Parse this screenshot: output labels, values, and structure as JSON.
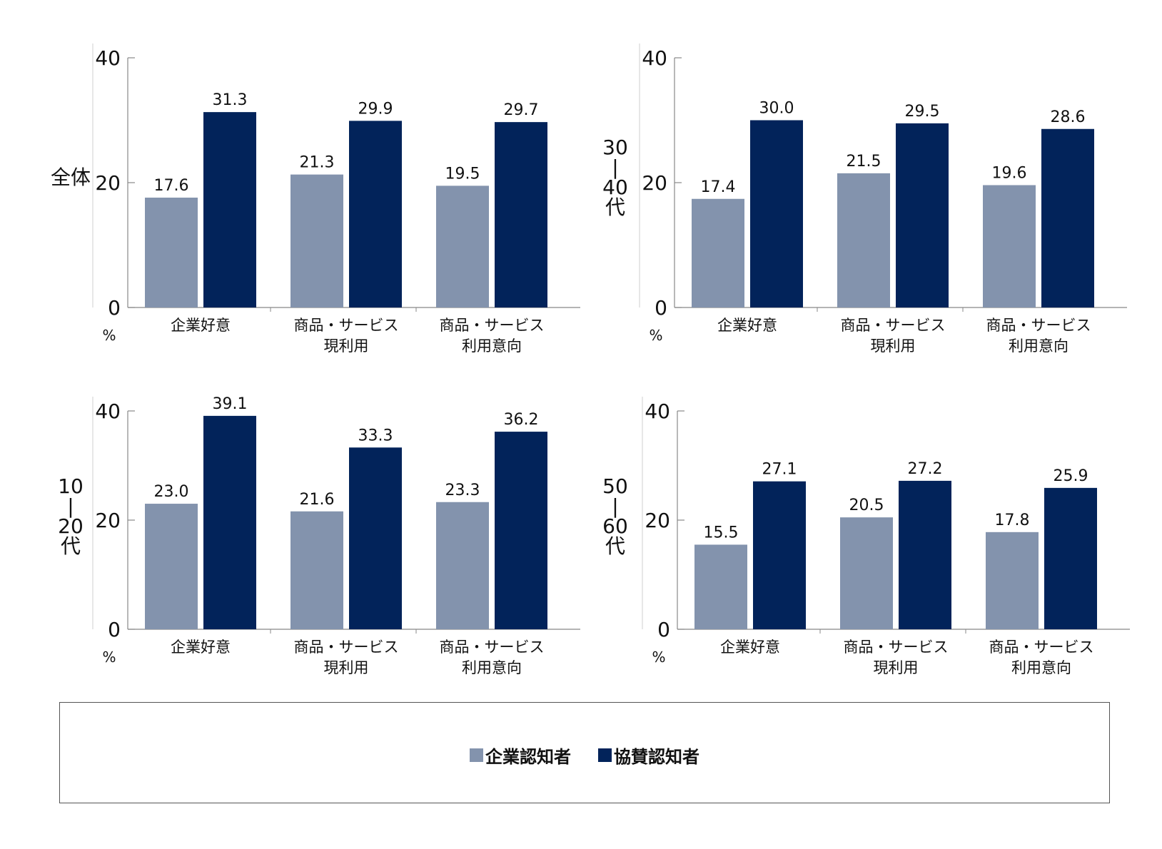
{
  "colors": {
    "series1": "#8393ad",
    "series2": "#02235a",
    "axis": "#888888"
  },
  "chart_data": [
    {
      "type": "bar",
      "panel_label": "全体",
      "unit": "%",
      "ylim": [
        0,
        40
      ],
      "yticks": [
        0,
        20,
        40
      ],
      "categories": [
        "企業好意",
        "商品・サービス\n現利用",
        "商品・サービス\n利用意向"
      ],
      "series": [
        {
          "name": "企業認知者",
          "values": [
            17.6,
            21.3,
            19.5
          ]
        },
        {
          "name": "協賛認知者",
          "values": [
            31.3,
            29.9,
            29.7
          ]
        }
      ]
    },
    {
      "type": "bar",
      "panel_label": "30\n|\n40\n代",
      "unit": "%",
      "ylim": [
        0,
        40
      ],
      "yticks": [
        0,
        20,
        40
      ],
      "categories": [
        "企業好意",
        "商品・サービス\n現利用",
        "商品・サービス\n利用意向"
      ],
      "series": [
        {
          "name": "企業認知者",
          "values": [
            17.4,
            21.5,
            19.6
          ]
        },
        {
          "name": "協賛認知者",
          "values": [
            30.0,
            29.5,
            28.6
          ]
        }
      ]
    },
    {
      "type": "bar",
      "panel_label": "10\n|\n20\n代",
      "unit": "%",
      "ylim": [
        0,
        40
      ],
      "yticks": [
        0,
        20,
        40
      ],
      "categories": [
        "企業好意",
        "商品・サービス\n現利用",
        "商品・サービス\n利用意向"
      ],
      "series": [
        {
          "name": "企業認知者",
          "values": [
            23.0,
            21.6,
            23.3
          ]
        },
        {
          "name": "協賛認知者",
          "values": [
            39.1,
            33.3,
            36.2
          ]
        }
      ]
    },
    {
      "type": "bar",
      "panel_label": "50\n|\n60\n代",
      "unit": "%",
      "ylim": [
        0,
        40
      ],
      "yticks": [
        0,
        20,
        40
      ],
      "categories": [
        "企業好意",
        "商品・サービス\n現利用",
        "商品・サービス\n利用意向"
      ],
      "series": [
        {
          "name": "企業認知者",
          "values": [
            15.5,
            20.5,
            17.8
          ]
        },
        {
          "name": "協賛認知者",
          "values": [
            27.1,
            27.2,
            25.9
          ]
        }
      ]
    }
  ],
  "legend": {
    "placement": "bottom",
    "items": [
      {
        "label": "企業認知者",
        "color": "#8393ad"
      },
      {
        "label": "協賛認知者",
        "color": "#02235a"
      }
    ]
  }
}
